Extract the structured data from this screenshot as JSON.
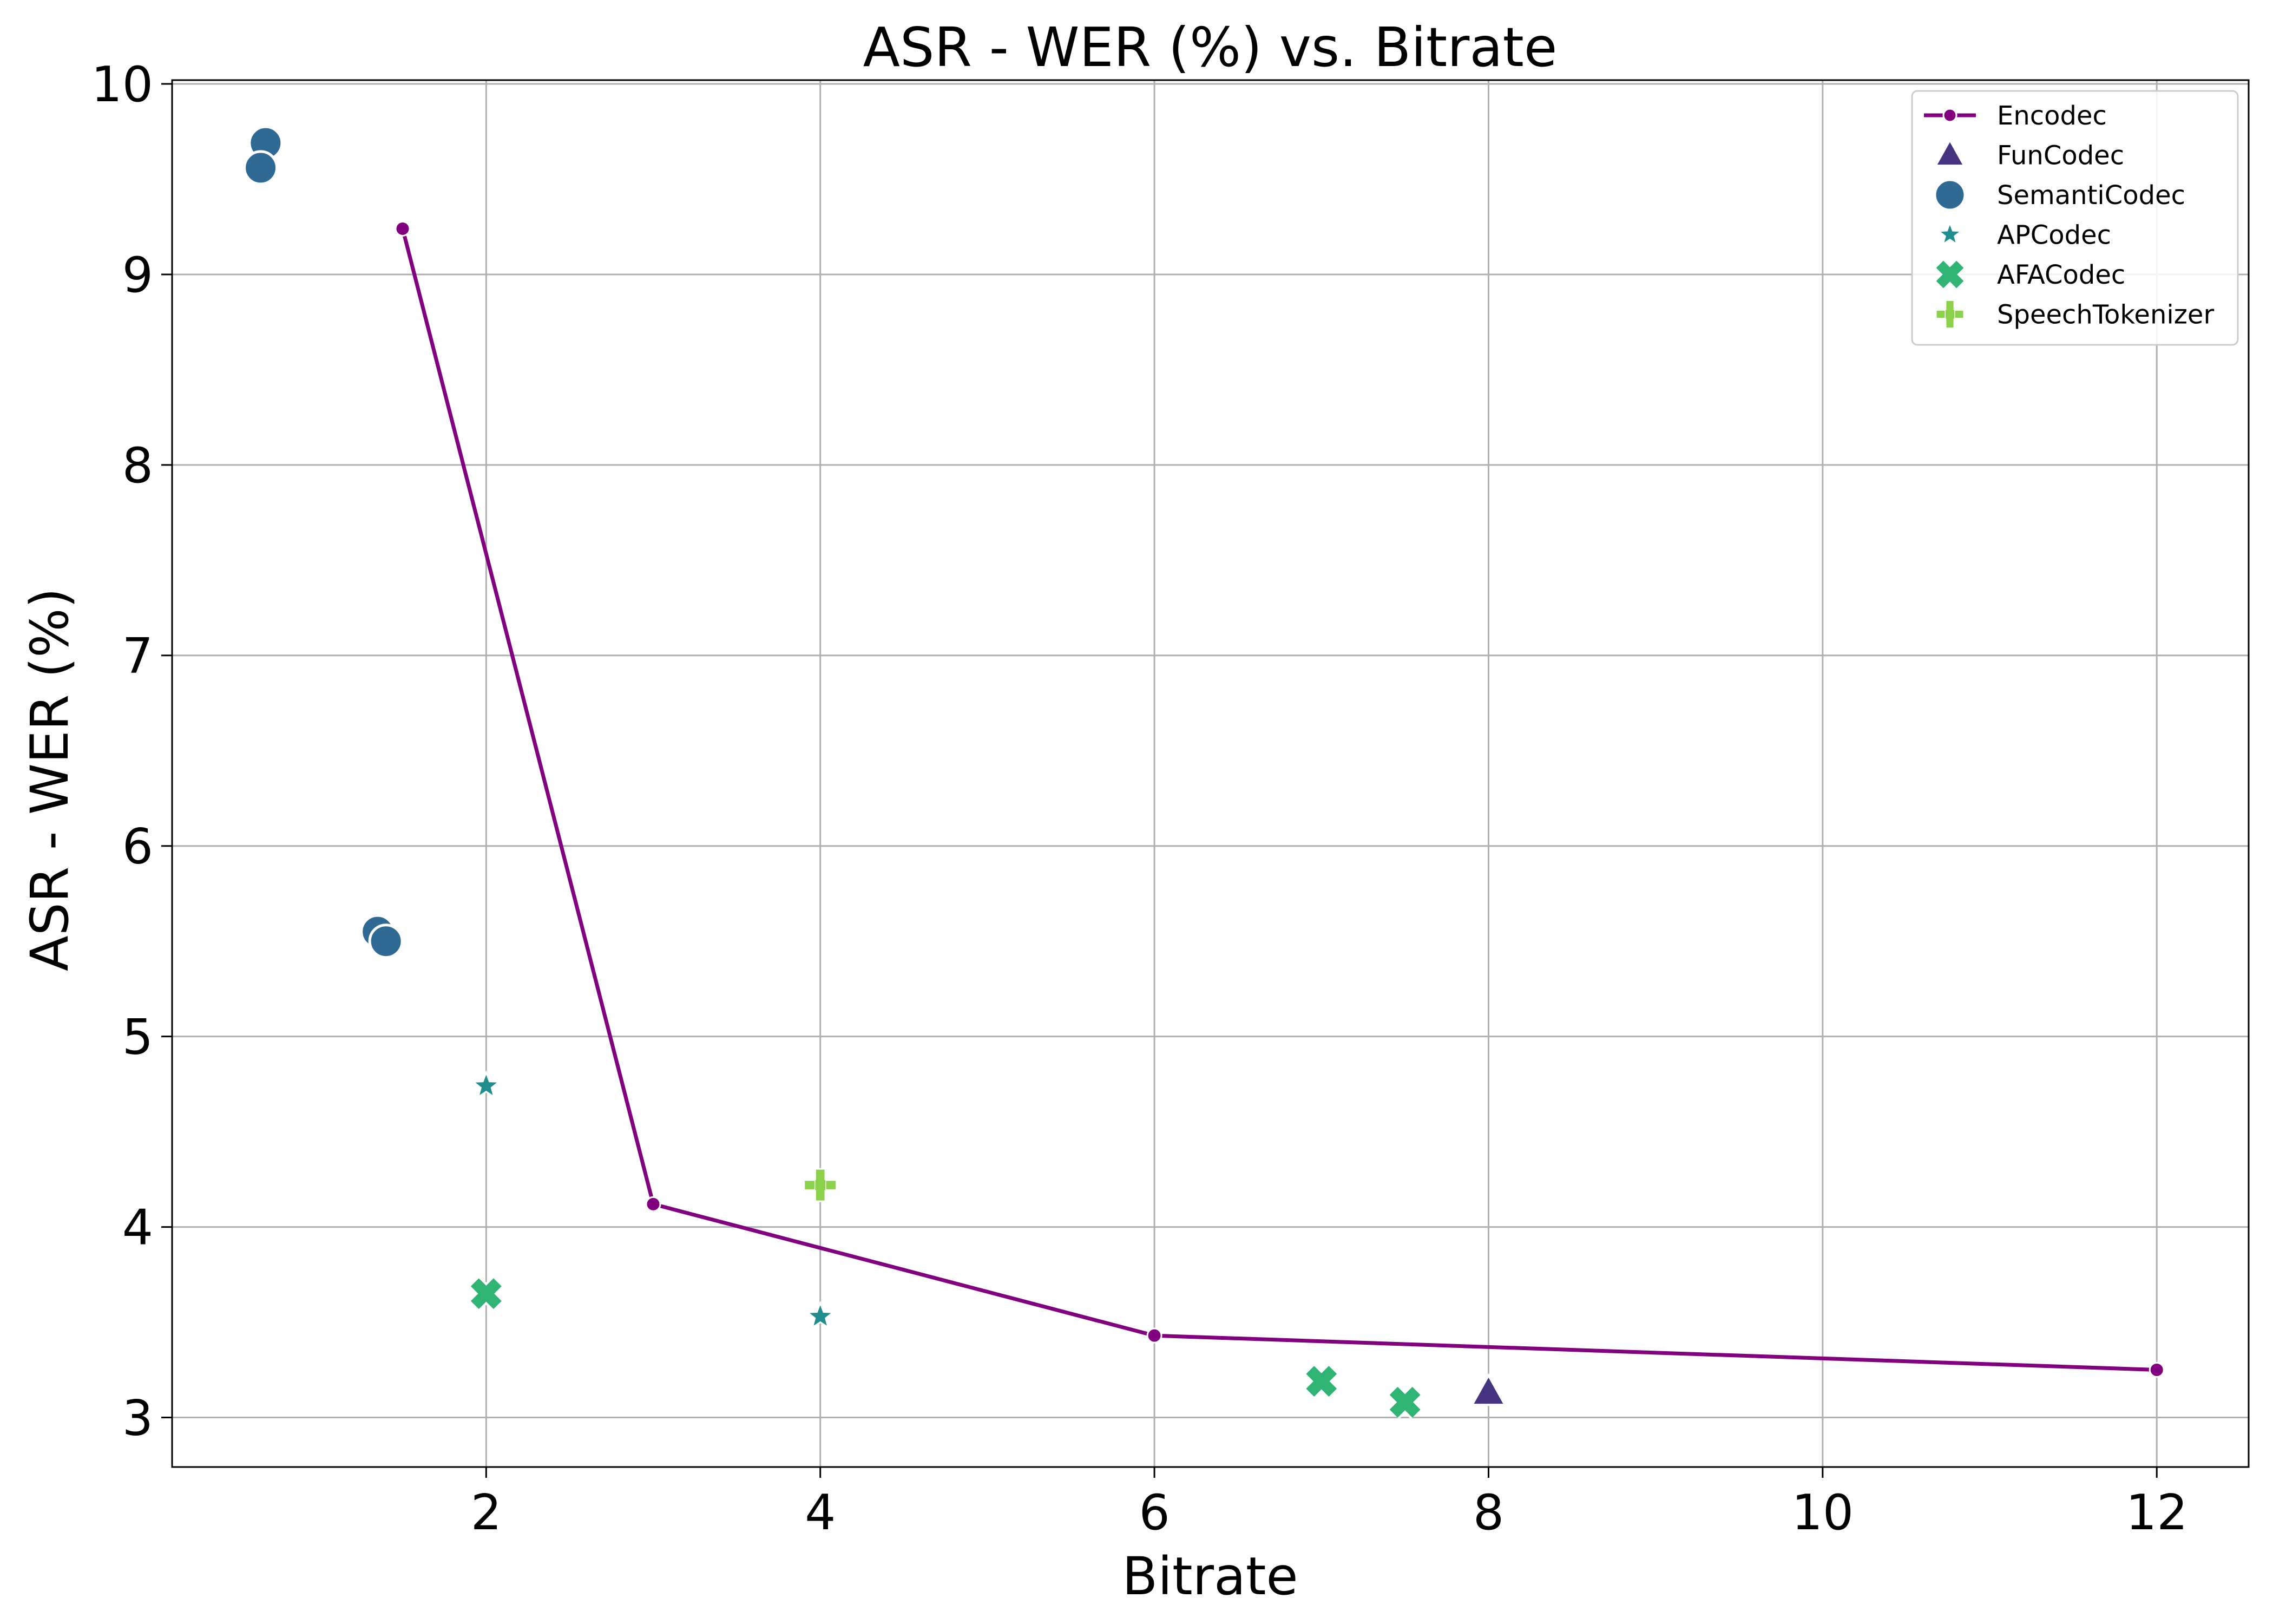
{
  "chart_data": {
    "type": "scatter",
    "title": "ASR - WER (%) vs. Bitrate",
    "xlabel": "Bitrate",
    "ylabel": "ASR - WER (%)",
    "xlim": [
      0.12,
      12.55
    ],
    "ylim": [
      2.74,
      10.02
    ],
    "xticks": [
      2,
      4,
      6,
      8,
      10,
      12
    ],
    "yticks": [
      3,
      4,
      5,
      6,
      7,
      8,
      9,
      10
    ],
    "grid": true,
    "legend_position": "top-right",
    "series": [
      {
        "name": "Encodec",
        "kind": "line",
        "marker": "dot",
        "color": "#800080",
        "points": [
          [
            1.5,
            9.24
          ],
          [
            3,
            4.12
          ],
          [
            6,
            3.43
          ],
          [
            12,
            3.25
          ]
        ]
      },
      {
        "name": "FunCodec",
        "kind": "scatter",
        "marker": "triangle",
        "color": "#463480",
        "points": [
          [
            8,
            3.13
          ]
        ]
      },
      {
        "name": "SemantiCodec",
        "kind": "scatter",
        "marker": "circle",
        "color": "#2e6a93",
        "points": [
          [
            0.68,
            9.69
          ],
          [
            0.65,
            9.56
          ],
          [
            1.35,
            5.55
          ],
          [
            1.4,
            5.5
          ]
        ]
      },
      {
        "name": "APCodec",
        "kind": "scatter",
        "marker": "star",
        "color": "#218d8c",
        "points": [
          [
            2,
            4.74
          ],
          [
            4,
            3.53
          ]
        ]
      },
      {
        "name": "AFACodec",
        "kind": "scatter",
        "marker": "x",
        "color": "#2fb473",
        "points": [
          [
            2,
            3.65
          ],
          [
            7,
            3.19
          ],
          [
            7.5,
            3.08
          ]
        ]
      },
      {
        "name": "SpeechTokenizer",
        "kind": "scatter",
        "marker": "plus",
        "color": "#8cd14b",
        "points": [
          [
            4,
            4.22
          ]
        ]
      }
    ]
  }
}
